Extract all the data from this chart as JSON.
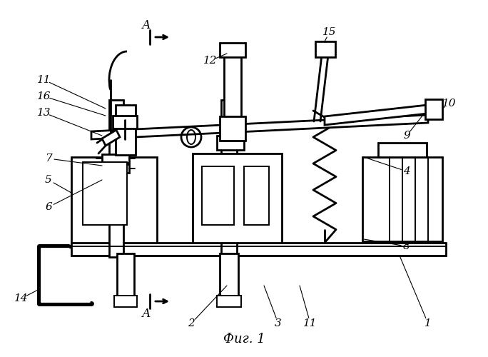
{
  "title": "Фиг. 1",
  "background_color": "#ffffff",
  "line_color": "#000000",
  "figsize": [
    6.84,
    5.0
  ],
  "dpi": 100
}
